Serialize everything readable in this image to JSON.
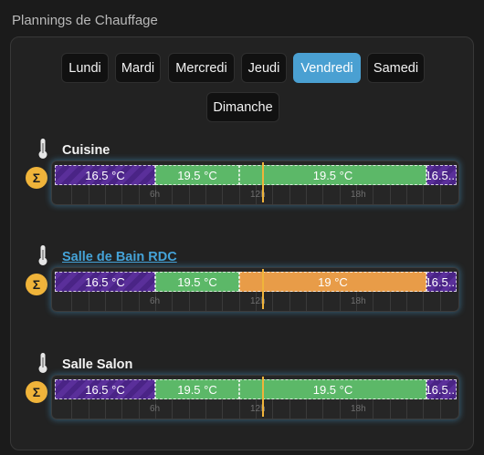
{
  "section_title": "Plannings de Chauffage",
  "days": [
    {
      "label": "Lundi",
      "active": false
    },
    {
      "label": "Mardi",
      "active": false
    },
    {
      "label": "Mercredi",
      "active": false
    },
    {
      "label": "Jeudi",
      "active": false
    },
    {
      "label": "Vendredi",
      "active": true
    },
    {
      "label": "Samedi",
      "active": false
    },
    {
      "label": "Dimanche",
      "active": false
    }
  ],
  "colors": {
    "active_day": "#4aa0d2",
    "eco": "#5a2f9a",
    "comfort": "#5cb868",
    "medium": "#e89c48",
    "now_marker": "#f0b43a",
    "link": "#45a3d8"
  },
  "hour_labels": [
    "6h",
    "12h",
    "18h"
  ],
  "current_time_hours": 12.4,
  "rooms": [
    {
      "name": "Cuisine",
      "is_link": false,
      "icon": "thermometer-icon",
      "mode_icon": "sigma-icon",
      "mode_symbol": "Σ",
      "segments": [
        {
          "start": 0,
          "end": 6,
          "label": "16.5 °C",
          "type": "eco"
        },
        {
          "start": 6,
          "end": 11,
          "label": "19.5 °C",
          "type": "comfort"
        },
        {
          "start": 11,
          "end": 22.2,
          "label": "19.5 °C",
          "type": "comfort"
        },
        {
          "start": 22.2,
          "end": 24,
          "label": "16.5...",
          "type": "eco"
        }
      ]
    },
    {
      "name": "Salle de Bain RDC",
      "is_link": true,
      "icon": "thermometer-icon",
      "mode_icon": "sigma-icon",
      "mode_symbol": "Σ",
      "segments": [
        {
          "start": 0,
          "end": 6,
          "label": "16.5 °C",
          "type": "eco"
        },
        {
          "start": 6,
          "end": 11,
          "label": "19.5 °C",
          "type": "comfort"
        },
        {
          "start": 11,
          "end": 22.2,
          "label": "19 °C",
          "type": "medium"
        },
        {
          "start": 22.2,
          "end": 24,
          "label": "16.5...",
          "type": "eco"
        }
      ]
    },
    {
      "name": "Salle Salon",
      "is_link": false,
      "icon": "thermometer-icon",
      "mode_icon": "sigma-icon",
      "mode_symbol": "Σ",
      "segments": [
        {
          "start": 0,
          "end": 6,
          "label": "16.5 °C",
          "type": "eco"
        },
        {
          "start": 6,
          "end": 11,
          "label": "19.5 °C",
          "type": "comfort"
        },
        {
          "start": 11,
          "end": 22.2,
          "label": "19.5 °C",
          "type": "comfort"
        },
        {
          "start": 22.2,
          "end": 24,
          "label": "16.5...",
          "type": "eco"
        }
      ]
    }
  ]
}
